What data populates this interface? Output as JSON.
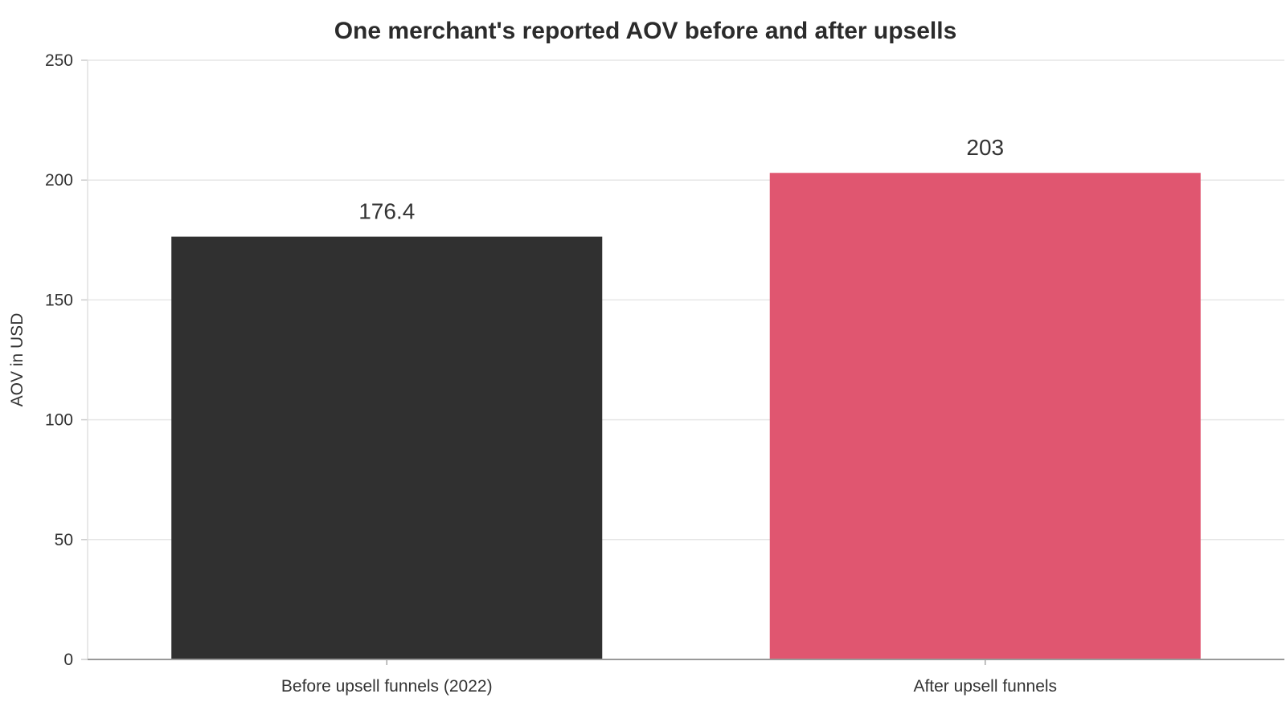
{
  "chart_data": {
    "type": "bar",
    "title": "One merchant's reported AOV before and after upsells",
    "xlabel": "",
    "ylabel": "AOV in USD",
    "categories": [
      "Before upsell funnels (2022)",
      "After upsell funnels"
    ],
    "values": [
      176.4,
      203
    ],
    "value_labels": [
      "176.4",
      "203"
    ],
    "colors": [
      "#303030",
      "#e05670"
    ],
    "ylim": [
      0,
      250
    ],
    "yticks": [
      0,
      50,
      100,
      150,
      200,
      250
    ],
    "grid": true,
    "legend": "none"
  }
}
